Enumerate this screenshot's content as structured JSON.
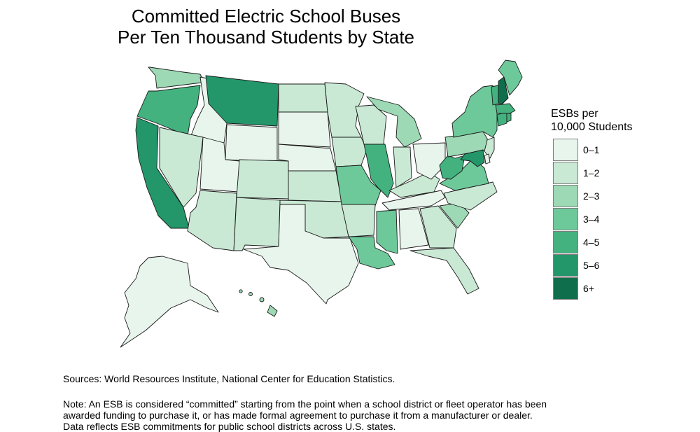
{
  "title": {
    "line1": "Committed Electric School Buses",
    "line2": "Per Ten Thousand Students by State"
  },
  "legend": {
    "title_line1": "ESBs per",
    "title_line2": "10,000 Students",
    "bins": [
      {
        "label": "0–1",
        "color": "#e8f5ec"
      },
      {
        "label": "1–2",
        "color": "#c9e9d4"
      },
      {
        "label": "2–3",
        "color": "#9ed9b5"
      },
      {
        "label": "3–4",
        "color": "#6ec99a"
      },
      {
        "label": "4–5",
        "color": "#43b27f"
      },
      {
        "label": "5–6",
        "color": "#23966a"
      },
      {
        "label": "6+",
        "color": "#0f6e4b"
      }
    ]
  },
  "states": {
    "WA": 2,
    "OR": 4,
    "CA": 5,
    "ID": 0,
    "NV": 1,
    "MT": 5,
    "WY": 0,
    "UT": 0,
    "AZ": 1,
    "CO": 1,
    "NM": 1,
    "ND": 1,
    "SD": 0,
    "NE": 0,
    "KS": 1,
    "OK": 1,
    "TX": 0,
    "MN": 1,
    "IA": 1,
    "MO": 3,
    "AR": 1,
    "LA": 3,
    "WI": 1,
    "IL": 4,
    "MS": 3,
    "MI": 2,
    "IN": 1,
    "KY": 1,
    "TN": 0,
    "AL": 0,
    "OH": 0,
    "GA": 1,
    "FL": 1,
    "SC": 2,
    "NC": 1,
    "VA": 3,
    "WV": 4,
    "PA": 2,
    "NY": 3,
    "NJ": 1,
    "DE": 0,
    "MD": 5,
    "CT": 4,
    "RI": 4,
    "MA": 4,
    "VT": 4,
    "NH": 6,
    "ME": 3,
    "AK": 0,
    "HI": 2
  },
  "sources": "Sources: World Resources Institute, National Center for Education Statistics.",
  "note": {
    "line1": "Note: An ESB is considered “committed” starting from the point when a school district or fleet operator has been",
    "line2": "awarded funding to purchase it, or has made formal agreement to purchase it from a manufacturer or dealer.",
    "line3": "Data reflects ESB commitments for public school districts across U.S. states."
  }
}
